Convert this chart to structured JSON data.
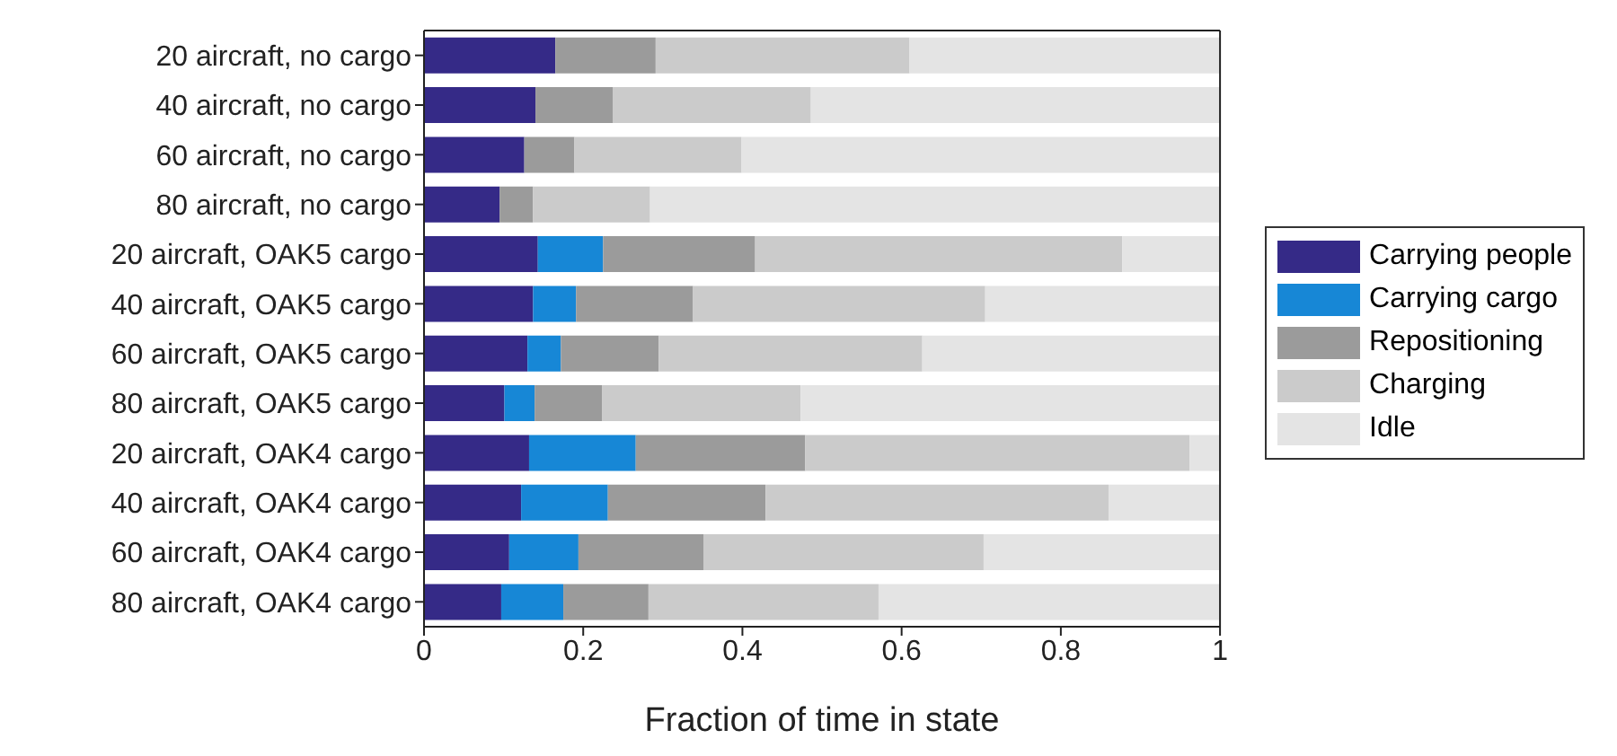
{
  "chart_data": {
    "type": "bar",
    "orientation": "horizontal",
    "stacked": true,
    "xlabel": "Fraction of time in state",
    "categories": [
      "20 aircraft, no cargo",
      "40 aircraft, no cargo",
      "60 aircraft, no cargo",
      "80 aircraft, no cargo",
      "20 aircraft, OAK5 cargo",
      "40 aircraft, OAK5 cargo",
      "60 aircraft, OAK5 cargo",
      "80 aircraft, OAK5 cargo",
      "20 aircraft, OAK4 cargo",
      "40 aircraft, OAK4 cargo",
      "60 aircraft, OAK4 cargo",
      "80 aircraft, OAK4 cargo"
    ],
    "series": [
      {
        "name": "Carrying people",
        "color": "#352a87",
        "values": [
          0.165,
          0.14,
          0.126,
          0.095,
          0.143,
          0.137,
          0.13,
          0.101,
          0.132,
          0.122,
          0.107,
          0.097
        ]
      },
      {
        "name": "Carrying cargo",
        "color": "#1787d6",
        "values": [
          0,
          0,
          0,
          0,
          0.082,
          0.054,
          0.042,
          0.038,
          0.134,
          0.109,
          0.087,
          0.078
        ]
      },
      {
        "name": "Repositioning",
        "color": "#9b9b9b",
        "values": [
          0.126,
          0.097,
          0.063,
          0.042,
          0.191,
          0.147,
          0.123,
          0.085,
          0.213,
          0.198,
          0.157,
          0.107
        ]
      },
      {
        "name": "Charging",
        "color": "#cbcbcb",
        "values": [
          0.319,
          0.249,
          0.21,
          0.147,
          0.461,
          0.367,
          0.331,
          0.249,
          0.483,
          0.431,
          0.352,
          0.289
        ]
      },
      {
        "name": "Idle",
        "color": "#e4e4e4",
        "values": [
          0.39,
          0.514,
          0.601,
          0.716,
          0.123,
          0.295,
          0.374,
          0.527,
          0.038,
          0.14,
          0.297,
          0.429
        ]
      }
    ],
    "xlim": [
      0,
      1
    ],
    "xticks": [
      0,
      0.2,
      0.4,
      0.6,
      0.8,
      1
    ],
    "legend": "right"
  }
}
